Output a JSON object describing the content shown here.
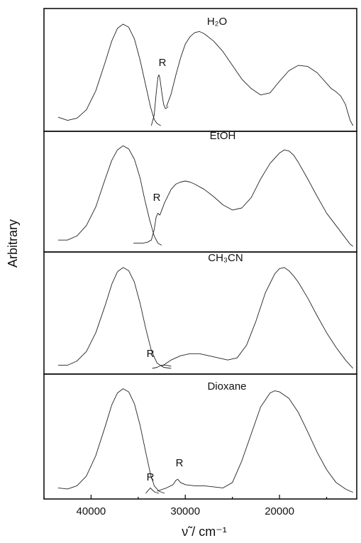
{
  "chart_data": {
    "type": "line",
    "ylabel": "Arbitrary",
    "xlabel": "ν̃ / cm⁻¹",
    "xlim": [
      45000,
      11800
    ],
    "x_reversed": true,
    "xticks": [
      40000,
      30000,
      20000
    ],
    "xtick_labels": [
      "40000",
      "30000",
      "20000"
    ],
    "panels": [
      {
        "label": "H₂O",
        "series": [
          {
            "role": "absorption",
            "x": [
              43500,
              42500,
              41500,
              40500,
              39500,
              38500,
              37800,
              37200,
              36600,
              36000,
              35400,
              34800,
              34200,
              33700,
              33300,
              33000,
              32600
            ],
            "y": [
              0.08,
              0.05,
              0.07,
              0.15,
              0.33,
              0.6,
              0.8,
              0.92,
              0.96,
              0.93,
              0.82,
              0.62,
              0.38,
              0.18,
              0.06,
              0.02,
              0
            ]
          },
          {
            "role": "R",
            "x": [
              33600,
              33300,
              33100,
              32900,
              32800,
              32700,
              32500,
              32300,
              32100,
              31800
            ],
            "y": [
              0,
              0.1,
              0.3,
              0.46,
              0.48,
              0.45,
              0.32,
              0.2,
              0.16,
              0.18
            ]
          },
          {
            "role": "emission",
            "x": [
              32000,
              31500,
              31000,
              30500,
              30000,
              29500,
              29000,
              28500,
              28000,
              27000,
              26000,
              25000,
              24000,
              23000,
              22000,
              21000,
              20000,
              19000,
              18000,
              17000,
              16000,
              15000,
              14500,
              14000,
              13500,
              13000,
              12500,
              12200
            ],
            "y": [
              0.18,
              0.3,
              0.48,
              0.64,
              0.77,
              0.84,
              0.88,
              0.89,
              0.87,
              0.8,
              0.7,
              0.57,
              0.44,
              0.35,
              0.29,
              0.31,
              0.42,
              0.52,
              0.57,
              0.56,
              0.5,
              0.4,
              0.35,
              0.32,
              0.28,
              0.2,
              0.05,
              0
            ]
          }
        ],
        "annotations": [
          "R"
        ]
      },
      {
        "label": "EtOH",
        "series": [
          {
            "role": "absorption",
            "x": [
              43500,
              42500,
              41500,
              40500,
              39500,
              38500,
              37800,
              37200,
              36600,
              36000,
              35400,
              34800,
              34300,
              33800,
              33300,
              32900,
              32500
            ],
            "y": [
              0.06,
              0.06,
              0.1,
              0.2,
              0.38,
              0.65,
              0.83,
              0.93,
              0.97,
              0.94,
              0.84,
              0.66,
              0.45,
              0.26,
              0.1,
              0.03,
              0.01
            ]
          },
          {
            "role": "R",
            "x": [
              35500,
              34500,
              34000,
              33600,
              33300,
              33100,
              32900,
              32700
            ],
            "y": [
              0.03,
              0.03,
              0.04,
              0.06,
              0.16,
              0.28,
              0.32,
              0.3
            ]
          },
          {
            "role": "emission",
            "x": [
              32700,
              32200,
              31500,
              31000,
              30500,
              30000,
              29500,
              29000,
              28000,
              27000,
              26000,
              25000,
              24000,
              23000,
              22000,
              21000,
              20000,
              19500,
              19000,
              18500,
              18000,
              17000,
              16000,
              15000,
              14000,
              13000,
              12500,
              12200
            ],
            "y": [
              0.3,
              0.42,
              0.55,
              0.6,
              0.62,
              0.63,
              0.62,
              0.6,
              0.55,
              0.48,
              0.4,
              0.35,
              0.37,
              0.47,
              0.65,
              0.8,
              0.9,
              0.93,
              0.92,
              0.88,
              0.81,
              0.65,
              0.48,
              0.32,
              0.2,
              0.08,
              0.02,
              0
            ]
          }
        ],
        "annotations": [
          "R"
        ]
      },
      {
        "label": "CH₃CN",
        "series": [
          {
            "role": "absorption",
            "x": [
              43500,
              42500,
              41500,
              40500,
              39500,
              38500,
              37800,
              37200,
              36600,
              36000,
              35400,
              34800,
              34200,
              33600,
              33000,
              32300,
              31500
            ],
            "y": [
              0.03,
              0.03,
              0.07,
              0.16,
              0.34,
              0.6,
              0.8,
              0.92,
              0.96,
              0.93,
              0.82,
              0.62,
              0.38,
              0.17,
              0.05,
              0.01,
              0
            ]
          },
          {
            "role": "R",
            "x": [
              33500,
              33000,
              32500,
              32000,
              31500
            ],
            "y": [
              0,
              0.01,
              0.03,
              0.03,
              0.02
            ]
          },
          {
            "role": "emission",
            "x": [
              32500,
              31500,
              30500,
              29500,
              28500,
              27500,
              26500,
              25500,
              24500,
              23500,
              22500,
              21500,
              20500,
              20000,
              19500,
              19000,
              18500,
              18000,
              17000,
              16000,
              15000,
              14000,
              13000,
              12500,
              12200
            ],
            "y": [
              0.02,
              0.08,
              0.12,
              0.14,
              0.14,
              0.12,
              0.1,
              0.08,
              0.1,
              0.22,
              0.45,
              0.72,
              0.9,
              0.95,
              0.96,
              0.93,
              0.88,
              0.82,
              0.67,
              0.5,
              0.34,
              0.2,
              0.08,
              0.03,
              0
            ]
          }
        ],
        "annotations": [
          "R"
        ]
      },
      {
        "label": "Dioxane",
        "series": [
          {
            "role": "absorption",
            "x": [
              43500,
              42500,
              41500,
              40500,
              39500,
              38500,
              37800,
              37200,
              36600,
              36000,
              35400,
              34800,
              34200,
              33700,
              33300,
              32800,
              32200
            ],
            "y": [
              0.05,
              0.04,
              0.07,
              0.16,
              0.35,
              0.62,
              0.82,
              0.93,
              0.97,
              0.94,
              0.83,
              0.63,
              0.38,
              0.18,
              0.07,
              0.02,
              0
            ]
          },
          {
            "role": "R",
            "x": [
              34200,
              33900,
              33700,
              33500,
              33200,
              32800
            ],
            "y": [
              0,
              0.03,
              0.05,
              0.03,
              0.01,
              0
            ]
          },
          {
            "role": "emission",
            "x": [
              33000,
              32000,
              31300,
              31000,
              30800,
              30500,
              30000,
              29000,
              28000,
              27000,
              26000,
              25000,
              24000,
              23000,
              22000,
              21000,
              20500,
              20000,
              19000,
              18000,
              17000,
              16000,
              15000,
              14000,
              13000,
              12500,
              12200
            ],
            "y": [
              0.02,
              0.05,
              0.08,
              0.12,
              0.13,
              0.1,
              0.08,
              0.07,
              0.07,
              0.06,
              0.05,
              0.1,
              0.3,
              0.55,
              0.8,
              0.93,
              0.95,
              0.94,
              0.88,
              0.75,
              0.57,
              0.38,
              0.22,
              0.1,
              0.04,
              0.02,
              0.01
            ]
          }
        ],
        "annotations": [
          "R",
          "R"
        ]
      }
    ]
  }
}
